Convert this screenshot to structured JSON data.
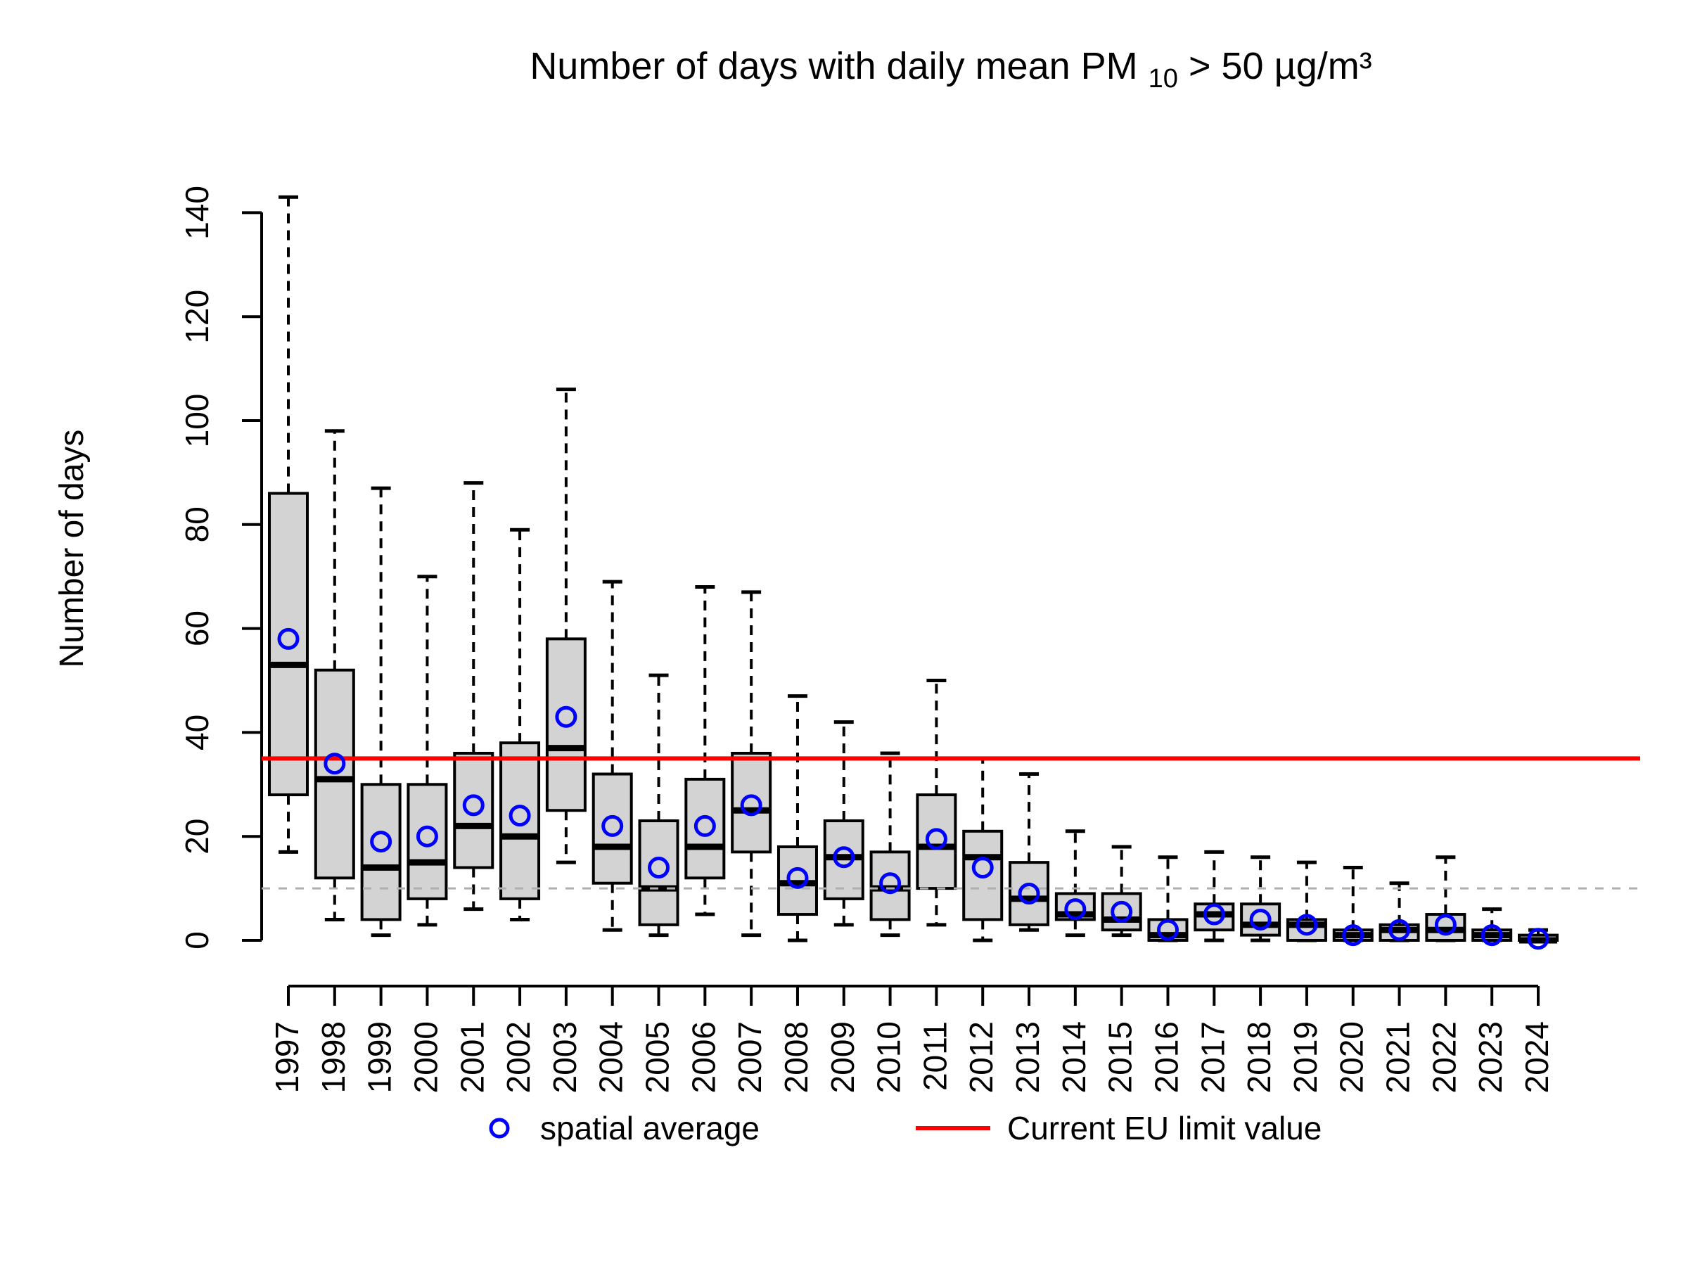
{
  "title": {
    "prefix": "Number of days with daily mean PM",
    "subscript": "10",
    "suffix": " > 50 µg/m³"
  },
  "y_axis": {
    "label": "Number of days",
    "ticks": [
      0,
      20,
      40,
      60,
      80,
      100,
      120,
      140
    ]
  },
  "x_axis": {
    "years": [
      1997,
      1998,
      1999,
      2000,
      2001,
      2002,
      2003,
      2004,
      2005,
      2006,
      2007,
      2008,
      2009,
      2010,
      2011,
      2012,
      2013,
      2014,
      2015,
      2016,
      2017,
      2018,
      2019,
      2020,
      2021,
      2022,
      2023,
      2024
    ]
  },
  "legend": {
    "items": [
      {
        "symbol": "circle",
        "color": "#0000ff",
        "label": "spatial average"
      },
      {
        "symbol": "line",
        "color": "#ff0000",
        "label": "Current EU limit value"
      }
    ]
  },
  "chart_data": {
    "type": "boxplot",
    "title": "Number of days with daily mean PM10 > 50 µg/m³",
    "xlabel": "",
    "ylabel": "Number of days",
    "ylim": [
      0,
      143
    ],
    "grid": false,
    "legend_position": "bottom",
    "box_fill": "#d3d3d3",
    "box_stroke": "#000000",
    "mean_marker_color": "#0000ff",
    "reference_lines": [
      {
        "name": "eu-limit",
        "value": 35,
        "color": "#ff0000",
        "style": "solid",
        "label": "Current EU limit value"
      },
      {
        "name": "guide-10",
        "value": 10,
        "color": "#b0b0b0",
        "style": "dashed",
        "label": ""
      }
    ],
    "series": [
      {
        "year": 1997,
        "min": 17,
        "q1": 28,
        "median": 53,
        "q3": 86,
        "max": 143,
        "mean": 58
      },
      {
        "year": 1998,
        "min": 4,
        "q1": 12,
        "median": 31,
        "q3": 52,
        "max": 98,
        "mean": 34
      },
      {
        "year": 1999,
        "min": 1,
        "q1": 4,
        "median": 14,
        "q3": 30,
        "max": 87,
        "mean": 19
      },
      {
        "year": 2000,
        "min": 3,
        "q1": 8,
        "median": 15,
        "q3": 30,
        "max": 70,
        "mean": 20
      },
      {
        "year": 2001,
        "min": 6,
        "q1": 14,
        "median": 22,
        "q3": 36,
        "max": 88,
        "mean": 26
      },
      {
        "year": 2002,
        "min": 4,
        "q1": 8,
        "median": 20,
        "q3": 38,
        "max": 79,
        "mean": 24
      },
      {
        "year": 2003,
        "min": 15,
        "q1": 25,
        "median": 37,
        "q3": 58,
        "max": 106,
        "mean": 43
      },
      {
        "year": 2004,
        "min": 2,
        "q1": 11,
        "median": 18,
        "q3": 32,
        "max": 69,
        "mean": 22
      },
      {
        "year": 2005,
        "min": 1,
        "q1": 3,
        "median": 10,
        "q3": 23,
        "max": 51,
        "mean": 14
      },
      {
        "year": 2006,
        "min": 5,
        "q1": 12,
        "median": 18,
        "q3": 31,
        "max": 68,
        "mean": 22
      },
      {
        "year": 2007,
        "min": 1,
        "q1": 17,
        "median": 25,
        "q3": 36,
        "max": 67,
        "mean": 26
      },
      {
        "year": 2008,
        "min": 0,
        "q1": 5,
        "median": 11,
        "q3": 18,
        "max": 47,
        "mean": 12
      },
      {
        "year": 2009,
        "min": 3,
        "q1": 8,
        "median": 16,
        "q3": 23,
        "max": 42,
        "mean": 16
      },
      {
        "year": 2010,
        "min": 1,
        "q1": 4,
        "median": 10,
        "q3": 17,
        "max": 36,
        "mean": 11
      },
      {
        "year": 2011,
        "min": 3,
        "q1": 10,
        "median": 18,
        "q3": 28,
        "max": 50,
        "mean": 19.5
      },
      {
        "year": 2012,
        "min": 0,
        "q1": 4,
        "median": 16,
        "q3": 21,
        "max": 35,
        "mean": 14
      },
      {
        "year": 2013,
        "min": 2,
        "q1": 3,
        "median": 8,
        "q3": 15,
        "max": 32,
        "mean": 9
      },
      {
        "year": 2014,
        "min": 1,
        "q1": 4,
        "median": 5,
        "q3": 9,
        "max": 21,
        "mean": 6
      },
      {
        "year": 2015,
        "min": 1,
        "q1": 2,
        "median": 4,
        "q3": 9,
        "max": 18,
        "mean": 5.5
      },
      {
        "year": 2016,
        "min": 0,
        "q1": 0,
        "median": 1,
        "q3": 4,
        "max": 16,
        "mean": 2
      },
      {
        "year": 2017,
        "min": 0,
        "q1": 2,
        "median": 5,
        "q3": 7,
        "max": 17,
        "mean": 5
      },
      {
        "year": 2018,
        "min": 0,
        "q1": 1,
        "median": 3,
        "q3": 7,
        "max": 16,
        "mean": 4
      },
      {
        "year": 2019,
        "min": 0,
        "q1": 0,
        "median": 3,
        "q3": 4,
        "max": 15,
        "mean": 3
      },
      {
        "year": 2020,
        "min": 0,
        "q1": 0,
        "median": 1,
        "q3": 2,
        "max": 14,
        "mean": 1
      },
      {
        "year": 2021,
        "min": 0,
        "q1": 0,
        "median": 2,
        "q3": 3,
        "max": 11,
        "mean": 2
      },
      {
        "year": 2022,
        "min": 0,
        "q1": 0,
        "median": 2,
        "q3": 5,
        "max": 16,
        "mean": 3
      },
      {
        "year": 2023,
        "min": 0,
        "q1": 0,
        "median": 1,
        "q3": 2,
        "max": 6,
        "mean": 1
      },
      {
        "year": 2024,
        "min": 0,
        "q1": 0,
        "median": 0,
        "q3": 1,
        "max": 2,
        "mean": 0.3
      }
    ]
  }
}
